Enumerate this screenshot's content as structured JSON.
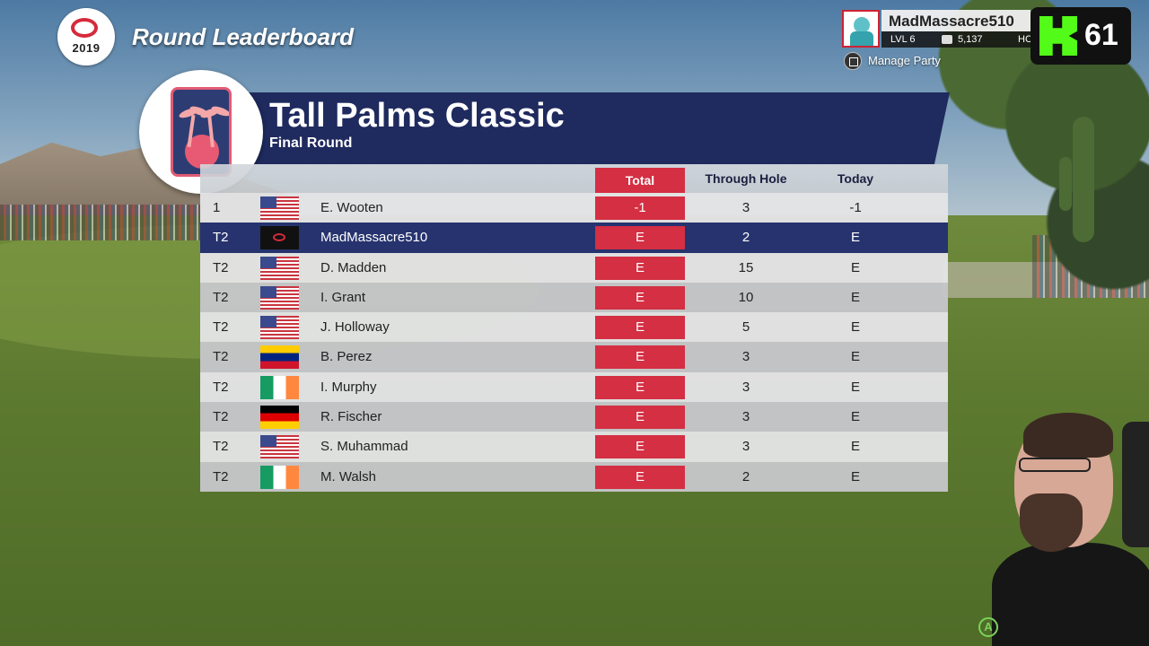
{
  "header": {
    "logo_year": "2019",
    "screen_title": "Round Leaderboard"
  },
  "profile": {
    "name": "MadMassacre510",
    "level": "LVL 6",
    "coins": "5,137",
    "hc_label": "HC",
    "manage_party": "Manage Party"
  },
  "stream": {
    "viewer_count": "61"
  },
  "event": {
    "name": "Tall Palms Classic",
    "round": "Final Round"
  },
  "table": {
    "headers": {
      "total": "Total",
      "through_hole": "Through Hole",
      "today": "Today"
    },
    "rows": [
      {
        "pos": "1",
        "flag": "us",
        "name": "E. Wooten",
        "total": "-1",
        "thru": "3",
        "today": "-1"
      },
      {
        "pos": "T2",
        "flag": "player",
        "name": "MadMassacre510",
        "total": "E",
        "thru": "2",
        "today": "E",
        "highlighted": true
      },
      {
        "pos": "T2",
        "flag": "us",
        "name": "D. Madden",
        "total": "E",
        "thru": "15",
        "today": "E"
      },
      {
        "pos": "T2",
        "flag": "us",
        "name": "I. Grant",
        "total": "E",
        "thru": "10",
        "today": "E"
      },
      {
        "pos": "T2",
        "flag": "us",
        "name": "J. Holloway",
        "total": "E",
        "thru": "5",
        "today": "E"
      },
      {
        "pos": "T2",
        "flag": "ve",
        "name": "B. Perez",
        "total": "E",
        "thru": "3",
        "today": "E"
      },
      {
        "pos": "T2",
        "flag": "ie",
        "name": "I. Murphy",
        "total": "E",
        "thru": "3",
        "today": "E"
      },
      {
        "pos": "T2",
        "flag": "de",
        "name": "R. Fischer",
        "total": "E",
        "thru": "3",
        "today": "E"
      },
      {
        "pos": "T2",
        "flag": "us",
        "name": "S. Muhammad",
        "total": "E",
        "thru": "3",
        "today": "E"
      },
      {
        "pos": "T2",
        "flag": "ie",
        "name": "M. Walsh",
        "total": "E",
        "thru": "2",
        "today": "E"
      }
    ]
  },
  "prompt": {
    "a_button": "A"
  },
  "colors": {
    "banner": "#1f2a5e",
    "total_accent": "#d42f43",
    "highlight_row": "#26336e",
    "kick_green": "#53fc18"
  }
}
